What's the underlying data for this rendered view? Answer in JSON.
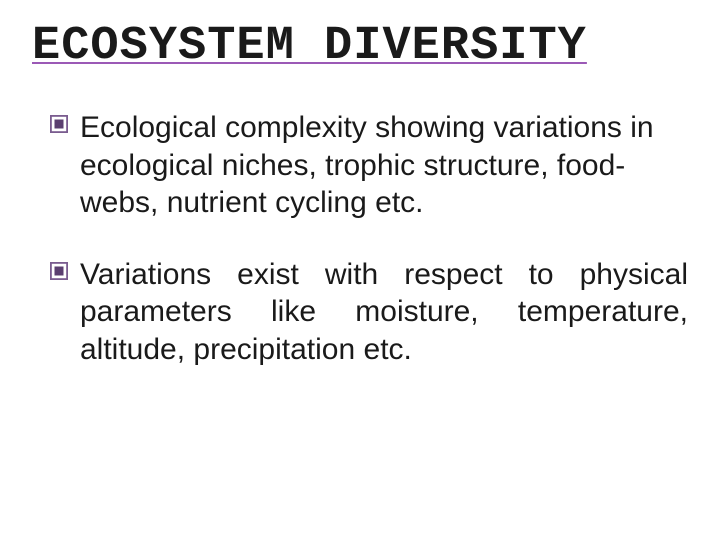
{
  "slide": {
    "title": "ECOSYSTEM DIVERSITY",
    "title_fontsize": 47,
    "title_color": "#1a1a1a",
    "title_font_family": "Courier New",
    "title_underline_color": "#9b59b6",
    "body_fontsize": 30,
    "body_color": "#1a1a1a",
    "body_font_family": "Arial",
    "background_color": "#ffffff",
    "bullets": [
      {
        "text": "Ecological complexity showing variations in ecological niches, trophic  structure, food-webs, nutrient cycling etc.",
        "justify": false
      },
      {
        "text": "Variations exist with respect to physical parameters like moisture, temperature, altitude, precipitation etc.",
        "justify": true
      }
    ],
    "bullet_icon": {
      "name": "framed-square-icon",
      "outer_color": "#7a5c8f",
      "inner_color": "#5b3f70",
      "size": 18
    }
  }
}
